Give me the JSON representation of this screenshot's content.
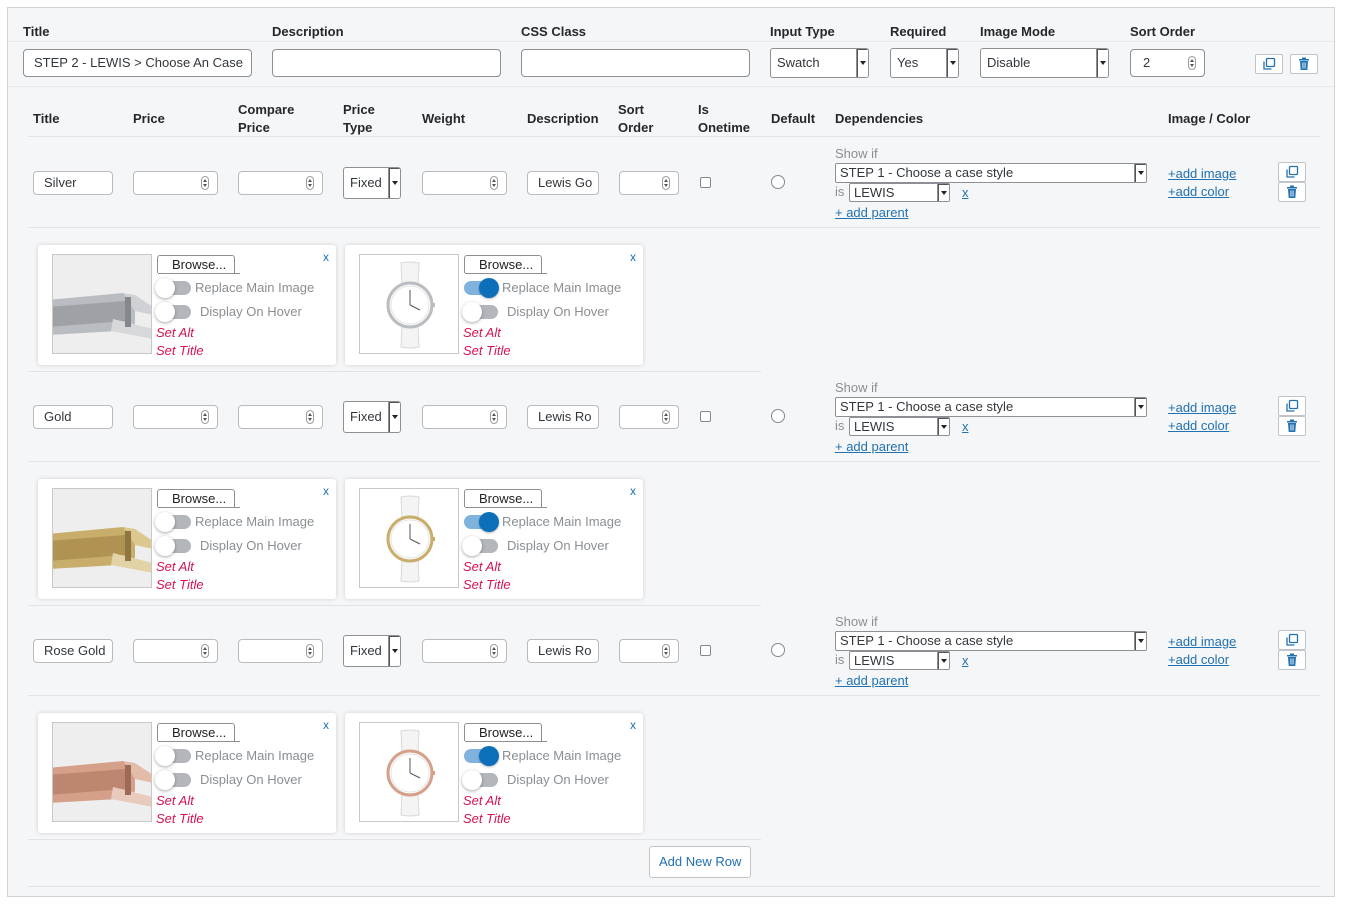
{
  "option": {
    "headers": {
      "title": "Title",
      "description": "Description",
      "css_class": "CSS Class",
      "input_type": "Input Type",
      "required": "Required",
      "image_mode": "Image Mode",
      "sort_order": "Sort Order"
    },
    "title_value": "STEP 2 - LEWIS > Choose An Case",
    "description_value": "",
    "css_class_value": "",
    "input_type_value": "Swatch",
    "required_value": "Yes",
    "image_mode_value": "Disable",
    "sort_order_value": "2"
  },
  "values_table": {
    "headers": {
      "title": "Title",
      "price": "Price",
      "compare_price_1": "Compare",
      "compare_price_2": "Price",
      "price_type_1": "Price",
      "price_type_2": "Type",
      "weight": "Weight",
      "description": "Description",
      "sort_order_1": "Sort",
      "sort_order_2": "Order",
      "is_onetime_1": "Is",
      "is_onetime_2": "Onetime",
      "default": "Default",
      "dependencies": "Dependencies",
      "image_color": "Image / Color"
    },
    "rows": [
      {
        "title": "Silver",
        "price_type": "Fixed",
        "description": "Lewis Go",
        "show_if": "Show if",
        "dependency": "STEP 1 - Choose a case style",
        "is_label": "is",
        "is_value": "LEWIS",
        "remove": "x",
        "add_parent": "+ add parent",
        "add_image": "+add image",
        "add_color": "+add color",
        "images": [
          {
            "browse": "Browse...",
            "replace_label": "Replace Main Image",
            "hover_label": "Display On Hover",
            "set_alt": "Set Alt",
            "set_title": "Set Title",
            "close": "x",
            "replace_on": false
          },
          {
            "browse": "Browse...",
            "replace_label": "Replace Main Image",
            "hover_label": "Display On Hover",
            "set_alt": "Set Alt",
            "set_title": "Set Title",
            "close": "x",
            "replace_on": true
          }
        ]
      },
      {
        "title": "Gold",
        "price_type": "Fixed",
        "description": "Lewis Ro",
        "show_if": "Show if",
        "dependency": "STEP 1 - Choose a case style",
        "is_label": "is",
        "is_value": "LEWIS",
        "remove": "x",
        "add_parent": "+ add parent",
        "add_image": "+add image",
        "add_color": "+add color",
        "images": [
          {
            "browse": "Browse...",
            "replace_label": "Replace Main Image",
            "hover_label": "Display On Hover",
            "set_alt": "Set Alt",
            "set_title": "Set Title",
            "close": "x",
            "replace_on": false
          },
          {
            "browse": "Browse...",
            "replace_label": "Replace Main Image",
            "hover_label": "Display On Hover",
            "set_alt": "Set Alt",
            "set_title": "Set Title",
            "close": "x",
            "replace_on": true
          }
        ]
      },
      {
        "title": "Rose Gold",
        "price_type": "Fixed",
        "description": "Lewis Ro",
        "show_if": "Show if",
        "dependency": "STEP 1 - Choose a case style",
        "is_label": "is",
        "is_value": "LEWIS",
        "remove": "x",
        "add_parent": "+ add parent",
        "add_image": "+add image",
        "add_color": "+add color",
        "images": [
          {
            "browse": "Browse...",
            "replace_label": "Replace Main Image",
            "hover_label": "Display On Hover",
            "set_alt": "Set Alt",
            "set_title": "Set Title",
            "close": "x",
            "replace_on": false
          },
          {
            "browse": "Browse...",
            "replace_label": "Replace Main Image",
            "hover_label": "Display On Hover",
            "set_alt": "Set Alt",
            "set_title": "Set Title",
            "close": "x",
            "replace_on": true
          }
        ]
      }
    ]
  },
  "add_new_row": "Add New Row",
  "colors": {
    "link": "#2271b1",
    "set_links": "#d6134f",
    "toggle_on": "#0b6fba",
    "silver": "#b9bcc0",
    "gold": "#c9ad6b",
    "rose_gold": "#d4a08a"
  }
}
